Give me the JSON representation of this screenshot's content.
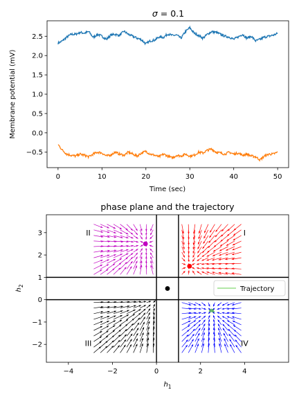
{
  "chart_data": [
    {
      "type": "line",
      "title": "σ = 0.1",
      "title_prefix": "σ",
      "title_suffix": " = 0.1",
      "xlabel": "Time (sec)",
      "ylabel": "Membrane potential (mV)",
      "xlim": [
        -2.5,
        52.5
      ],
      "ylim": [
        -0.9,
        2.9
      ],
      "xticks": [
        0,
        10,
        20,
        30,
        40,
        50
      ],
      "yticks": [
        -0.5,
        0.0,
        0.5,
        1.0,
        1.5,
        2.0,
        2.5
      ],
      "grid": false,
      "series": [
        {
          "color": "#1f77b4",
          "x": [
            0,
            1,
            2,
            3,
            4,
            5,
            6,
            7,
            8,
            9,
            10,
            11,
            12,
            13,
            14,
            15,
            16,
            17,
            18,
            19,
            20,
            21,
            22,
            23,
            24,
            25,
            26,
            27,
            28,
            29,
            30,
            31,
            32,
            33,
            34,
            35,
            36,
            37,
            38,
            39,
            40,
            41,
            42,
            43,
            44,
            45,
            46,
            47,
            48,
            49,
            50
          ],
          "values": [
            2.32,
            2.38,
            2.48,
            2.55,
            2.55,
            2.6,
            2.58,
            2.62,
            2.47,
            2.55,
            2.5,
            2.42,
            2.53,
            2.55,
            2.52,
            2.63,
            2.55,
            2.5,
            2.45,
            2.41,
            2.3,
            2.38,
            2.4,
            2.48,
            2.47,
            2.56,
            2.52,
            2.53,
            2.45,
            2.62,
            2.72,
            2.58,
            2.52,
            2.45,
            2.55,
            2.62,
            2.6,
            2.55,
            2.5,
            2.48,
            2.42,
            2.48,
            2.55,
            2.45,
            2.5,
            2.38,
            2.42,
            2.48,
            2.5,
            2.53,
            2.57
          ]
        },
        {
          "color": "#ff7f0e",
          "x": [
            0,
            1,
            2,
            3,
            4,
            5,
            6,
            7,
            8,
            9,
            10,
            11,
            12,
            13,
            14,
            15,
            16,
            17,
            18,
            19,
            20,
            21,
            22,
            23,
            24,
            25,
            26,
            27,
            28,
            29,
            30,
            31,
            32,
            33,
            34,
            35,
            36,
            37,
            38,
            39,
            40,
            41,
            42,
            43,
            44,
            45,
            46,
            47,
            48,
            49,
            50
          ],
          "values": [
            -0.3,
            -0.45,
            -0.55,
            -0.58,
            -0.6,
            -0.55,
            -0.58,
            -0.62,
            -0.55,
            -0.5,
            -0.52,
            -0.6,
            -0.57,
            -0.5,
            -0.55,
            -0.58,
            -0.5,
            -0.55,
            -0.6,
            -0.52,
            -0.48,
            -0.55,
            -0.58,
            -0.62,
            -0.55,
            -0.6,
            -0.65,
            -0.58,
            -0.6,
            -0.55,
            -0.6,
            -0.58,
            -0.5,
            -0.52,
            -0.45,
            -0.42,
            -0.5,
            -0.52,
            -0.55,
            -0.5,
            -0.55,
            -0.52,
            -0.58,
            -0.55,
            -0.6,
            -0.62,
            -0.7,
            -0.6,
            -0.55,
            -0.55,
            -0.5
          ]
        }
      ]
    },
    {
      "type": "scatter",
      "title": "phase plane and the trajectory",
      "xlabel_base": "h",
      "xlabel_sub": "1",
      "ylabel_base": "h",
      "ylabel_sub": "2",
      "xlim": [
        -5,
        6
      ],
      "ylim": [
        -2.8,
        3.8
      ],
      "xticks": [
        -4,
        -2,
        0,
        2,
        4
      ],
      "yticks": [
        -2,
        -1,
        0,
        1,
        2,
        3
      ],
      "grid": false,
      "lines": {
        "vertical_x": [
          0,
          1
        ],
        "horizontal_y": [
          0,
          1
        ]
      },
      "quadrant_labels": [
        "I",
        "II",
        "III",
        "IV"
      ],
      "quadrant_colors": [
        "#ff0000",
        "#c000c0",
        "#000000",
        "#0000ff"
      ],
      "fixed_points": [
        {
          "x": 1.5,
          "y": 1.5,
          "color": "#ff0000"
        },
        {
          "x": -0.5,
          "y": 2.5,
          "color": "#c000c0"
        },
        {
          "x": 0.5,
          "y": 0.5,
          "color": "#000000"
        }
      ],
      "trajectory": {
        "name": "Trajectory",
        "color": "#2ca02c",
        "legend_color": "#98df8a",
        "center": [
          2.5,
          -0.5
        ]
      },
      "legend_loc": "center right"
    }
  ]
}
